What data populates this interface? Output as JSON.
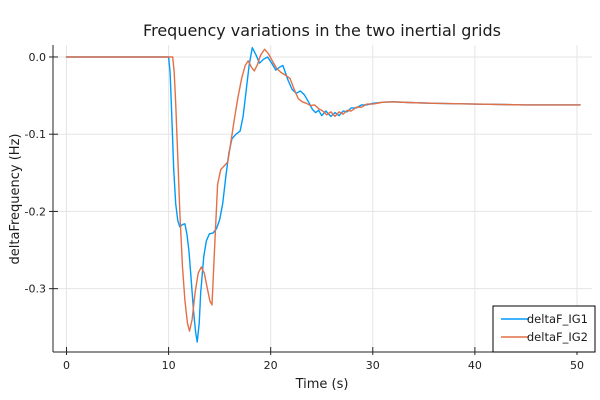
{
  "chart_data": {
    "type": "line",
    "title": "Frequency variations in the two inertial grids",
    "xlabel": "Time (s)",
    "ylabel": "deltaFrequency (Hz)",
    "xlim": [
      -1.32,
      51.47
    ],
    "ylim": [
      -0.382,
      0.0155
    ],
    "xticks": [
      0,
      10,
      20,
      30,
      40,
      50
    ],
    "xtick_labels": [
      "0",
      "10",
      "20",
      "30",
      "40",
      "50"
    ],
    "yticks": [
      0,
      -0.1,
      -0.2,
      -0.3
    ],
    "ytick_labels": [
      "0.0",
      "-0.1",
      "-0.2",
      "-0.3"
    ],
    "grid": true,
    "legend": {
      "position": "bottom-right",
      "entries": [
        "deltaF_IG1",
        "deltaF_IG2"
      ]
    },
    "colors": {
      "series1": "#009af9",
      "series2": "#e36f47",
      "grid": "#e5e5e5",
      "axis": "#232323",
      "background": "#ffffff"
    },
    "series": [
      {
        "name": "deltaF_IG1",
        "color": "#009af9",
        "points": [
          [
            0,
            0
          ],
          [
            3,
            0
          ],
          [
            6,
            0
          ],
          [
            8.5,
            0
          ],
          [
            9.6,
            0
          ],
          [
            10,
            0
          ],
          [
            10.15,
            -0.02
          ],
          [
            10.3,
            -0.07
          ],
          [
            10.5,
            -0.145
          ],
          [
            10.7,
            -0.19
          ],
          [
            10.9,
            -0.212
          ],
          [
            11.1,
            -0.22
          ],
          [
            11.35,
            -0.217
          ],
          [
            11.6,
            -0.216
          ],
          [
            11.8,
            -0.23
          ],
          [
            12,
            -0.252
          ],
          [
            12.2,
            -0.285
          ],
          [
            12.45,
            -0.33
          ],
          [
            12.65,
            -0.356
          ],
          [
            12.8,
            -0.369
          ],
          [
            13,
            -0.345
          ],
          [
            13.15,
            -0.305
          ],
          [
            13.45,
            -0.258
          ],
          [
            13.7,
            -0.238
          ],
          [
            14,
            -0.229
          ],
          [
            14.35,
            -0.228
          ],
          [
            14.7,
            -0.222
          ],
          [
            15,
            -0.211
          ],
          [
            15.3,
            -0.19
          ],
          [
            15.6,
            -0.155
          ],
          [
            15.9,
            -0.125
          ],
          [
            16.2,
            -0.106
          ],
          [
            16.6,
            -0.1
          ],
          [
            17,
            -0.096
          ],
          [
            17.3,
            -0.077
          ],
          [
            17.6,
            -0.043
          ],
          [
            17.9,
            -0.01
          ],
          [
            18.2,
            0.012
          ],
          [
            18.55,
            0.003
          ],
          [
            18.9,
            -0.008
          ],
          [
            19.3,
            -0.003
          ],
          [
            19.7,
            0
          ],
          [
            20.1,
            -0.008
          ],
          [
            20.5,
            -0.017
          ],
          [
            20.9,
            -0.013
          ],
          [
            21.2,
            -0.011
          ],
          [
            21.7,
            -0.03
          ],
          [
            22.1,
            -0.042
          ],
          [
            22.5,
            -0.047
          ],
          [
            22.9,
            -0.044
          ],
          [
            23.3,
            -0.049
          ],
          [
            23.7,
            -0.058
          ],
          [
            24.1,
            -0.068
          ],
          [
            24.4,
            -0.072
          ],
          [
            24.7,
            -0.069
          ],
          [
            25,
            -0.076
          ],
          [
            25.4,
            -0.07
          ],
          [
            25.9,
            -0.077
          ],
          [
            26.3,
            -0.072
          ],
          [
            26.7,
            -0.076
          ],
          [
            27.1,
            -0.07
          ],
          [
            27.5,
            -0.071
          ],
          [
            27.9,
            -0.066
          ],
          [
            28.4,
            -0.066
          ],
          [
            28.9,
            -0.062
          ],
          [
            29.4,
            -0.062
          ],
          [
            30,
            -0.06
          ],
          [
            31,
            -0.0585
          ],
          [
            32,
            -0.058
          ],
          [
            33.5,
            -0.059
          ],
          [
            36,
            -0.06
          ],
          [
            40,
            -0.061
          ],
          [
            45,
            -0.062
          ],
          [
            50.3,
            -0.062
          ]
        ]
      },
      {
        "name": "deltaF_IG2",
        "color": "#e36f47",
        "points": [
          [
            0,
            0
          ],
          [
            3,
            0
          ],
          [
            6,
            0
          ],
          [
            9,
            0
          ],
          [
            10.4,
            0
          ],
          [
            10.55,
            -0.02
          ],
          [
            10.7,
            -0.06
          ],
          [
            10.9,
            -0.13
          ],
          [
            11.1,
            -0.2
          ],
          [
            11.35,
            -0.27
          ],
          [
            11.6,
            -0.315
          ],
          [
            11.85,
            -0.345
          ],
          [
            12.05,
            -0.355
          ],
          [
            12.3,
            -0.34
          ],
          [
            12.6,
            -0.305
          ],
          [
            12.9,
            -0.28
          ],
          [
            13.2,
            -0.272
          ],
          [
            13.5,
            -0.28
          ],
          [
            13.8,
            -0.3
          ],
          [
            14.05,
            -0.316
          ],
          [
            14.25,
            -0.321
          ],
          [
            14.5,
            -0.25
          ],
          [
            14.8,
            -0.165
          ],
          [
            15.1,
            -0.146
          ],
          [
            15.45,
            -0.141
          ],
          [
            15.8,
            -0.136
          ],
          [
            16.1,
            -0.11
          ],
          [
            16.45,
            -0.08
          ],
          [
            16.8,
            -0.052
          ],
          [
            17.15,
            -0.028
          ],
          [
            17.5,
            -0.011
          ],
          [
            17.8,
            -0.005
          ],
          [
            18.1,
            -0.013
          ],
          [
            18.4,
            -0.018
          ],
          [
            18.7,
            -0.01
          ],
          [
            19,
            0.002
          ],
          [
            19.4,
            0.01
          ],
          [
            19.8,
            0.004
          ],
          [
            20.2,
            -0.006
          ],
          [
            20.6,
            -0.015
          ],
          [
            21,
            -0.02
          ],
          [
            21.5,
            -0.024
          ],
          [
            21.9,
            -0.028
          ],
          [
            22.3,
            -0.042
          ],
          [
            22.7,
            -0.054
          ],
          [
            23.1,
            -0.058
          ],
          [
            23.5,
            -0.06
          ],
          [
            23.9,
            -0.063
          ],
          [
            24.3,
            -0.062
          ],
          [
            24.7,
            -0.067
          ],
          [
            25.1,
            -0.07
          ],
          [
            25.5,
            -0.075
          ],
          [
            25.9,
            -0.071
          ],
          [
            26.3,
            -0.077
          ],
          [
            26.7,
            -0.071
          ],
          [
            27.1,
            -0.074
          ],
          [
            27.5,
            -0.069
          ],
          [
            27.9,
            -0.07
          ],
          [
            28.4,
            -0.065
          ],
          [
            28.9,
            -0.065
          ],
          [
            29.4,
            -0.061
          ],
          [
            30,
            -0.061
          ],
          [
            31,
            -0.0585
          ],
          [
            32,
            -0.058
          ],
          [
            33.5,
            -0.059
          ],
          [
            36,
            -0.06
          ],
          [
            40,
            -0.061
          ],
          [
            45,
            -0.062
          ],
          [
            50.3,
            -0.062
          ]
        ]
      }
    ]
  }
}
